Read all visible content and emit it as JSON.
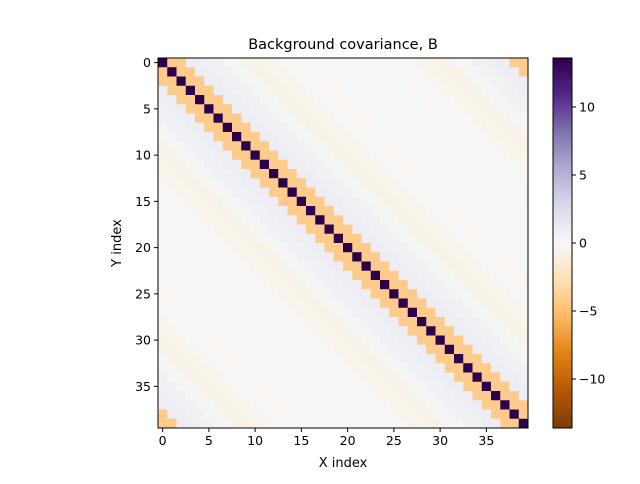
{
  "chart_data": {
    "type": "heatmap",
    "title": "Background covariance, B",
    "xlabel": "X index",
    "ylabel": "Y index",
    "size": 40,
    "x_ticks": [
      0,
      5,
      10,
      15,
      20,
      25,
      30,
      35
    ],
    "y_ticks": [
      0,
      5,
      10,
      15,
      20,
      25,
      30,
      35
    ],
    "colormap": "PuOr",
    "colorbar": {
      "vmin": -13.6,
      "vmax": 13.6,
      "ticks": [
        -10,
        -5,
        0,
        5,
        10
      ],
      "colors": [
        "#7f3b08",
        "#b35806",
        "#e08214",
        "#fdb863",
        "#fee0b6",
        "#f7f7f7",
        "#d8daeb",
        "#b2abd2",
        "#8073ac",
        "#542788",
        "#2d004b"
      ]
    },
    "structure": "circulant",
    "kernel_by_offset": [
      13.6,
      -4.1,
      -4.1,
      0.9,
      0.9,
      0.6,
      0.6,
      0.2,
      0.2,
      -0.6,
      -0.6,
      -0.5,
      -0.5,
      -0.1,
      -0.1,
      -0.2,
      -0.2,
      0.1,
      0.1,
      0.1,
      0.1
    ]
  }
}
